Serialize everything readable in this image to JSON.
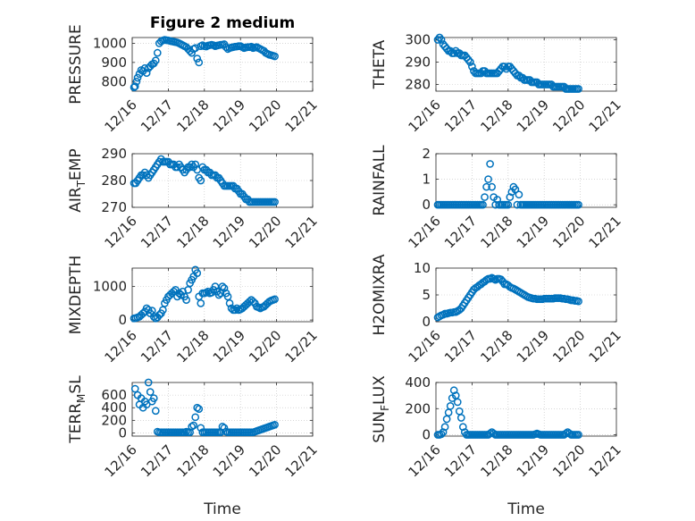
{
  "figure_title": "Figure 2 medium",
  "x_tick_labels": [
    "12/16",
    "12/17",
    "12/18",
    "12/19",
    "12/20",
    "12/21"
  ],
  "x_axis_label": "Time",
  "marker_color": "#0072BD",
  "chart_data": [
    {
      "type": "scatter",
      "title": "Figure 2 medium",
      "ylabel": "PRESSURE",
      "ylabel_main": "PRESSURE",
      "ylabel_sub": "",
      "ylabel_tail": "",
      "ylim": [
        750,
        1030
      ],
      "yticks": [
        800,
        900,
        1000
      ],
      "xlim": [
        0,
        5
      ],
      "x": [
        0.05,
        0.08,
        0.12,
        0.15,
        0.2,
        0.25,
        0.3,
        0.35,
        0.4,
        0.45,
        0.5,
        0.55,
        0.6,
        0.65,
        0.7,
        0.75,
        0.8,
        0.85,
        0.9,
        0.95,
        1.0,
        1.05,
        1.1,
        1.15,
        1.2,
        1.25,
        1.3,
        1.35,
        1.4,
        1.45,
        1.5,
        1.55,
        1.6,
        1.65,
        1.7,
        1.75,
        1.8,
        1.85,
        1.9,
        1.95,
        2.0,
        2.05,
        2.1,
        2.15,
        2.2,
        2.25,
        2.3,
        2.35,
        2.4,
        2.45,
        2.5,
        2.55,
        2.6,
        2.65,
        2.7,
        2.75,
        2.8,
        2.85,
        2.9,
        2.95,
        3.0,
        3.05,
        3.1,
        3.15,
        3.2,
        3.25,
        3.3,
        3.35,
        3.4,
        3.45,
        3.5,
        3.55,
        3.6,
        3.65,
        3.7,
        3.75,
        3.8,
        3.85,
        3.9,
        3.95
      ],
      "y": [
        770,
        775,
        800,
        820,
        840,
        860,
        855,
        870,
        845,
        870,
        880,
        890,
        895,
        910,
        950,
        1000,
        1010,
        1015,
        1018,
        1016,
        1015,
        1012,
        1010,
        1008,
        1006,
        1004,
        1000,
        995,
        990,
        985,
        980,
        970,
        960,
        950,
        970,
        975,
        920,
        900,
        985,
        990,
        985,
        983,
        988,
        990,
        992,
        990,
        985,
        988,
        990,
        992,
        993,
        995,
        980,
        970,
        975,
        978,
        980,
        982,
        983,
        985,
        985,
        980,
        975,
        978,
        980,
        980,
        982,
        975,
        978,
        980,
        975,
        970,
        965,
        960,
        950,
        945,
        940,
        938,
        935,
        932
      ]
    },
    {
      "type": "scatter",
      "ylabel": "THETA",
      "ylabel_main": "THETA",
      "ylabel_sub": "",
      "ylabel_tail": "",
      "ylim": [
        277,
        301
      ],
      "yticks": [
        280,
        290,
        300
      ],
      "xlim": [
        0,
        5
      ],
      "x": [
        0.05,
        0.1,
        0.15,
        0.2,
        0.25,
        0.3,
        0.35,
        0.4,
        0.45,
        0.5,
        0.55,
        0.6,
        0.65,
        0.7,
        0.75,
        0.8,
        0.85,
        0.9,
        0.95,
        1.0,
        1.05,
        1.1,
        1.15,
        1.2,
        1.25,
        1.3,
        1.35,
        1.4,
        1.45,
        1.5,
        1.55,
        1.6,
        1.65,
        1.7,
        1.75,
        1.8,
        1.85,
        1.9,
        1.95,
        2.0,
        2.05,
        2.1,
        2.15,
        2.2,
        2.25,
        2.3,
        2.35,
        2.4,
        2.45,
        2.5,
        2.55,
        2.6,
        2.65,
        2.7,
        2.75,
        2.8,
        2.85,
        2.9,
        2.95,
        3.0,
        3.05,
        3.1,
        3.15,
        3.2,
        3.25,
        3.3,
        3.35,
        3.4,
        3.45,
        3.5,
        3.55,
        3.6,
        3.65,
        3.7,
        3.75,
        3.8,
        3.85,
        3.9,
        3.95
      ],
      "y": [
        300,
        301,
        300,
        298,
        297,
        296,
        295,
        295,
        294,
        294,
        295,
        294,
        294,
        293,
        293,
        293,
        292,
        291,
        290,
        288,
        286,
        285,
        285,
        285,
        285,
        286,
        286,
        285,
        285,
        285,
        285,
        285,
        285,
        285,
        286,
        287,
        288,
        288,
        287,
        288,
        288,
        287,
        286,
        285,
        284,
        284,
        283,
        283,
        282,
        282,
        282,
        282,
        281,
        281,
        281,
        281,
        280,
        280,
        280,
        280,
        280,
        280,
        280,
        280,
        279,
        279,
        279,
        279,
        279,
        279,
        279,
        278,
        278,
        278,
        278,
        278,
        278,
        278,
        278
      ]
    },
    {
      "type": "scatter",
      "ylabel": "AIR_TEMP",
      "ylabel_main": "AIR",
      "ylabel_sub": "T",
      "ylabel_tail": "EMP",
      "ylim": [
        270,
        290
      ],
      "yticks": [
        270,
        280,
        290
      ],
      "xlim": [
        0,
        5
      ],
      "x": [
        0.05,
        0.1,
        0.15,
        0.2,
        0.25,
        0.3,
        0.35,
        0.4,
        0.45,
        0.5,
        0.55,
        0.6,
        0.65,
        0.7,
        0.75,
        0.8,
        0.85,
        0.9,
        0.95,
        1.0,
        1.05,
        1.1,
        1.15,
        1.2,
        1.25,
        1.3,
        1.35,
        1.4,
        1.45,
        1.5,
        1.55,
        1.6,
        1.65,
        1.7,
        1.75,
        1.8,
        1.85,
        1.9,
        1.95,
        2.0,
        2.05,
        2.1,
        2.15,
        2.2,
        2.25,
        2.3,
        2.35,
        2.4,
        2.45,
        2.5,
        2.55,
        2.6,
        2.65,
        2.7,
        2.75,
        2.8,
        2.85,
        2.9,
        2.95,
        3.0,
        3.05,
        3.1,
        3.15,
        3.2,
        3.25,
        3.3,
        3.35,
        3.4,
        3.45,
        3.5,
        3.55,
        3.6,
        3.65,
        3.7,
        3.75,
        3.8,
        3.85,
        3.9,
        3.95
      ],
      "y": [
        279,
        279,
        280,
        281,
        282,
        282,
        283,
        282,
        281,
        282,
        283,
        284,
        285,
        286,
        287,
        288,
        287,
        287,
        287,
        287,
        286,
        286,
        286,
        285,
        285,
        286,
        285,
        284,
        283,
        284,
        285,
        285,
        286,
        285,
        286,
        284,
        281,
        280,
        285,
        284,
        284,
        283,
        283,
        282,
        282,
        282,
        281,
        281,
        280,
        279,
        278,
        278,
        278,
        278,
        278,
        278,
        277,
        277,
        276,
        275,
        275,
        274,
        273,
        273,
        272,
        272,
        272,
        272,
        272,
        272,
        272,
        272,
        272,
        272,
        272,
        272,
        272,
        272,
        272
      ]
    },
    {
      "type": "scatter",
      "ylabel": "RAINFALL",
      "ylabel_main": "RAINFALL",
      "ylabel_sub": "",
      "ylabel_tail": "",
      "ylim": [
        -0.1,
        2
      ],
      "yticks": [
        0,
        1,
        2
      ],
      "xlim": [
        0,
        5
      ],
      "x": [
        0.05,
        0.1,
        0.15,
        0.2,
        0.25,
        0.3,
        0.35,
        0.4,
        0.45,
        0.5,
        0.55,
        0.6,
        0.65,
        0.7,
        0.75,
        0.8,
        0.85,
        0.9,
        0.95,
        1.0,
        1.05,
        1.1,
        1.15,
        1.2,
        1.25,
        1.3,
        1.35,
        1.4,
        1.45,
        1.5,
        1.55,
        1.6,
        1.65,
        1.7,
        1.75,
        1.8,
        1.85,
        1.9,
        1.95,
        2.0,
        2.05,
        2.1,
        2.15,
        2.2,
        2.25,
        2.3,
        2.35,
        2.4,
        2.45,
        2.5,
        2.55,
        2.6,
        2.65,
        2.7,
        2.75,
        2.8,
        2.85,
        2.9,
        2.95,
        3.0,
        3.05,
        3.1,
        3.15,
        3.2,
        3.25,
        3.3,
        3.35,
        3.4,
        3.45,
        3.5,
        3.55,
        3.6,
        3.65,
        3.7,
        3.75,
        3.8,
        3.85,
        3.9,
        3.95
      ],
      "y": [
        0,
        0,
        0,
        0,
        0,
        0,
        0,
        0,
        0,
        0,
        0,
        0,
        0,
        0,
        0,
        0,
        0,
        0,
        0,
        0,
        0,
        0,
        0,
        0,
        0,
        0,
        0.3,
        0.7,
        1.0,
        1.6,
        0.7,
        0.3,
        0,
        0.2,
        0,
        0,
        0,
        0,
        0,
        0,
        0.3,
        0.5,
        0.7,
        0.6,
        0,
        0.4,
        0,
        0,
        0,
        0,
        0,
        0,
        0,
        0,
        0,
        0,
        0,
        0,
        0,
        0,
        0,
        0,
        0,
        0,
        0,
        0,
        0,
        0,
        0,
        0,
        0,
        0,
        0,
        0,
        0,
        0,
        0,
        0,
        0
      ]
    },
    {
      "type": "scatter",
      "ylabel": "MIXDEPTH",
      "ylabel_main": "MIXDEPTH",
      "ylabel_sub": "",
      "ylabel_tail": "",
      "ylim": [
        -50,
        1550
      ],
      "yticks": [
        0,
        1000
      ],
      "xlim": [
        0,
        5
      ],
      "x": [
        0.05,
        0.1,
        0.15,
        0.2,
        0.25,
        0.3,
        0.35,
        0.4,
        0.45,
        0.5,
        0.55,
        0.6,
        0.65,
        0.7,
        0.75,
        0.8,
        0.85,
        0.9,
        0.95,
        1.0,
        1.05,
        1.1,
        1.15,
        1.2,
        1.25,
        1.3,
        1.35,
        1.4,
        1.45,
        1.5,
        1.55,
        1.6,
        1.65,
        1.7,
        1.75,
        1.8,
        1.85,
        1.9,
        1.95,
        2.0,
        2.05,
        2.1,
        2.15,
        2.2,
        2.25,
        2.3,
        2.35,
        2.4,
        2.45,
        2.5,
        2.55,
        2.6,
        2.65,
        2.7,
        2.75,
        2.8,
        2.85,
        2.9,
        2.95,
        3.0,
        3.05,
        3.1,
        3.15,
        3.2,
        3.25,
        3.3,
        3.35,
        3.4,
        3.45,
        3.5,
        3.55,
        3.6,
        3.65,
        3.7,
        3.75,
        3.8,
        3.85,
        3.9,
        3.95
      ],
      "y": [
        50,
        60,
        80,
        100,
        150,
        200,
        250,
        350,
        300,
        200,
        280,
        100,
        50,
        80,
        150,
        200,
        300,
        500,
        600,
        700,
        750,
        800,
        850,
        900,
        700,
        800,
        750,
        850,
        700,
        600,
        900,
        1100,
        1200,
        1300,
        1500,
        1400,
        700,
        500,
        800,
        800,
        820,
        850,
        800,
        820,
        900,
        1000,
        850,
        750,
        800,
        1000,
        950,
        800,
        700,
        500,
        350,
        300,
        300,
        350,
        300,
        320,
        350,
        400,
        450,
        500,
        550,
        600,
        550,
        500,
        400,
        380,
        350,
        380,
        400,
        450,
        500,
        550,
        580,
        600,
        620
      ]
    },
    {
      "type": "scatter",
      "ylabel": "H2OMIXRA",
      "ylabel_main": "H2OMIXRA",
      "ylabel_sub": "",
      "ylabel_tail": "",
      "ylim": [
        0,
        10
      ],
      "yticks": [
        0,
        5,
        10
      ],
      "xlim": [
        0,
        5
      ],
      "x": [
        0.05,
        0.1,
        0.15,
        0.2,
        0.25,
        0.3,
        0.35,
        0.4,
        0.45,
        0.5,
        0.55,
        0.6,
        0.65,
        0.7,
        0.75,
        0.8,
        0.85,
        0.9,
        0.95,
        1.0,
        1.05,
        1.1,
        1.15,
        1.2,
        1.25,
        1.3,
        1.35,
        1.4,
        1.45,
        1.5,
        1.55,
        1.6,
        1.65,
        1.7,
        1.75,
        1.8,
        1.85,
        1.9,
        1.95,
        2.0,
        2.05,
        2.1,
        2.15,
        2.2,
        2.25,
        2.3,
        2.35,
        2.4,
        2.45,
        2.5,
        2.55,
        2.6,
        2.65,
        2.7,
        2.75,
        2.8,
        2.85,
        2.9,
        2.95,
        3.0,
        3.05,
        3.1,
        3.15,
        3.2,
        3.25,
        3.3,
        3.35,
        3.4,
        3.45,
        3.5,
        3.55,
        3.6,
        3.65,
        3.7,
        3.75,
        3.8,
        3.85,
        3.9,
        3.95
      ],
      "y": [
        0.8,
        1.0,
        1.2,
        1.3,
        1.5,
        1.5,
        1.6,
        1.7,
        1.7,
        1.8,
        1.8,
        2.0,
        2.2,
        2.5,
        3.0,
        3.5,
        4.0,
        4.5,
        5.0,
        5.5,
        6.0,
        6.3,
        6.5,
        6.8,
        7.0,
        7.3,
        7.5,
        7.8,
        8.0,
        8.0,
        8.2,
        8.0,
        7.8,
        8.0,
        8.0,
        7.9,
        7.5,
        7.0,
        7.0,
        6.8,
        6.5,
        6.3,
        6.2,
        6.0,
        5.8,
        5.6,
        5.4,
        5.2,
        5.0,
        4.8,
        4.6,
        4.5,
        4.4,
        4.3,
        4.3,
        4.2,
        4.2,
        4.2,
        4.2,
        4.3,
        4.3,
        4.3,
        4.3,
        4.3,
        4.3,
        4.4,
        4.4,
        4.4,
        4.4,
        4.3,
        4.3,
        4.2,
        4.2,
        4.1,
        4.0,
        4.0,
        3.9,
        3.9,
        3.8
      ]
    },
    {
      "type": "scatter",
      "ylabel": "TERR_MSL",
      "ylabel_main": "TERR",
      "ylabel_sub": "M",
      "ylabel_tail": "SL",
      "ylim": [
        -50,
        800
      ],
      "yticks": [
        0,
        200,
        400,
        600
      ],
      "xlim": [
        0,
        5
      ],
      "x": [
        0.08,
        0.15,
        0.2,
        0.25,
        0.3,
        0.35,
        0.4,
        0.45,
        0.5,
        0.55,
        0.6,
        0.65,
        0.7,
        0.75,
        0.8,
        0.85,
        0.9,
        0.95,
        1.0,
        1.05,
        1.1,
        1.15,
        1.2,
        1.25,
        1.3,
        1.35,
        1.4,
        1.45,
        1.5,
        1.55,
        1.6,
        1.65,
        1.7,
        1.75,
        1.8,
        1.85,
        1.9,
        1.95,
        2.0,
        2.05,
        2.1,
        2.15,
        2.2,
        2.25,
        2.3,
        2.35,
        2.4,
        2.45,
        2.5,
        2.55,
        2.6,
        2.65,
        2.7,
        2.75,
        2.8,
        2.85,
        2.9,
        2.95,
        3.0,
        3.05,
        3.1,
        3.15,
        3.2,
        3.25,
        3.3,
        3.35,
        3.4,
        3.45,
        3.5,
        3.55,
        3.6,
        3.65,
        3.7,
        3.75,
        3.8,
        3.85,
        3.9,
        3.95
      ],
      "y": [
        700,
        600,
        450,
        550,
        400,
        500,
        450,
        800,
        650,
        500,
        550,
        350,
        20,
        10,
        10,
        10,
        10,
        10,
        10,
        10,
        10,
        10,
        10,
        10,
        10,
        10,
        10,
        10,
        20,
        10,
        10,
        100,
        120,
        250,
        400,
        380,
        80,
        10,
        10,
        10,
        10,
        10,
        10,
        10,
        10,
        10,
        10,
        10,
        100,
        80,
        20,
        10,
        10,
        10,
        10,
        10,
        10,
        10,
        10,
        10,
        10,
        10,
        10,
        10,
        10,
        10,
        20,
        30,
        40,
        50,
        60,
        70,
        80,
        90,
        100,
        110,
        120,
        130
      ]
    },
    {
      "type": "scatter",
      "ylabel": "SUN_FLUX",
      "ylabel_main": "SUN",
      "ylabel_sub": "F",
      "ylabel_tail": "LUX",
      "ylim": [
        -10,
        400
      ],
      "yticks": [
        0,
        200,
        400
      ],
      "xlim": [
        0,
        5
      ],
      "x": [
        0.05,
        0.1,
        0.15,
        0.2,
        0.25,
        0.3,
        0.35,
        0.4,
        0.45,
        0.5,
        0.55,
        0.6,
        0.65,
        0.7,
        0.75,
        0.8,
        0.85,
        0.9,
        0.95,
        1.0,
        1.05,
        1.1,
        1.15,
        1.2,
        1.25,
        1.3,
        1.35,
        1.4,
        1.45,
        1.5,
        1.55,
        1.6,
        1.65,
        1.7,
        1.75,
        1.8,
        1.85,
        1.9,
        1.95,
        2.0,
        2.05,
        2.1,
        2.15,
        2.2,
        2.25,
        2.3,
        2.35,
        2.4,
        2.45,
        2.5,
        2.55,
        2.6,
        2.65,
        2.7,
        2.75,
        2.8,
        2.85,
        2.9,
        2.95,
        3.0,
        3.05,
        3.1,
        3.15,
        3.2,
        3.25,
        3.3,
        3.35,
        3.4,
        3.45,
        3.5,
        3.55,
        3.6,
        3.65,
        3.7,
        3.75,
        3.8,
        3.85,
        3.9,
        3.95
      ],
      "y": [
        0,
        0,
        5,
        20,
        60,
        120,
        170,
        220,
        280,
        340,
        300,
        250,
        180,
        130,
        60,
        20,
        0,
        0,
        0,
        0,
        0,
        0,
        0,
        0,
        0,
        0,
        0,
        0,
        0,
        10,
        20,
        10,
        0,
        0,
        0,
        0,
        0,
        0,
        0,
        0,
        0,
        0,
        0,
        0,
        0,
        0,
        0,
        0,
        0,
        0,
        0,
        0,
        0,
        0,
        5,
        10,
        5,
        0,
        0,
        0,
        0,
        0,
        0,
        0,
        0,
        0,
        0,
        0,
        0,
        0,
        0,
        10,
        20,
        10,
        0,
        0,
        0,
        0,
        0
      ]
    }
  ]
}
